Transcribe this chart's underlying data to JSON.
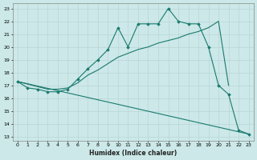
{
  "xlabel": "Humidex (Indice chaleur)",
  "xlim": [
    0,
    23
  ],
  "ylim": [
    13,
    23
  ],
  "yticks": [
    13,
    14,
    15,
    16,
    17,
    18,
    19,
    20,
    21,
    22,
    23
  ],
  "xticks": [
    0,
    1,
    2,
    3,
    4,
    5,
    6,
    7,
    8,
    9,
    10,
    11,
    12,
    13,
    14,
    15,
    16,
    17,
    18,
    19,
    20,
    21,
    22,
    23
  ],
  "bg_color": "#cce8e8",
  "line_color": "#1a7a6e",
  "grid_color": "#b8d4d4",
  "line1": {
    "x": [
      0,
      1,
      2,
      3,
      4,
      5,
      6,
      7,
      8,
      9,
      10,
      11,
      12,
      13,
      14,
      15,
      16,
      17,
      18,
      19,
      20,
      21,
      22,
      23
    ],
    "y": [
      17.3,
      16.8,
      16.7,
      16.5,
      16.5,
      16.7,
      17.5,
      18.3,
      19.0,
      19.8,
      21.5,
      20.0,
      21.8,
      21.8,
      21.8,
      23.0,
      22.0,
      21.8,
      21.8,
      20.0,
      17.0,
      16.3,
      13.5,
      13.2
    ]
  },
  "line2": {
    "x": [
      0,
      3,
      4,
      5,
      6,
      7,
      8,
      9,
      10,
      11,
      12,
      13,
      14,
      15,
      16,
      17,
      18,
      19,
      20,
      21
    ],
    "y": [
      17.3,
      16.7,
      16.7,
      16.8,
      17.2,
      17.8,
      18.2,
      18.7,
      19.2,
      19.5,
      19.8,
      20.0,
      20.3,
      20.5,
      20.7,
      21.0,
      21.2,
      21.5,
      22.0,
      17.0
    ]
  },
  "line3": {
    "x": [
      0,
      3,
      4,
      5,
      6,
      7,
      8,
      9,
      10,
      11,
      12,
      13,
      14,
      15,
      16,
      17,
      18,
      19,
      20,
      21,
      22,
      23
    ],
    "y": [
      17.3,
      16.5,
      16.3,
      16.1,
      15.8,
      15.6,
      15.4,
      15.1,
      14.9,
      14.7,
      14.5,
      14.3,
      14.1,
      13.9,
      13.8,
      13.7,
      13.6,
      13.5,
      13.4,
      13.3,
      13.2,
      13.2
    ]
  }
}
